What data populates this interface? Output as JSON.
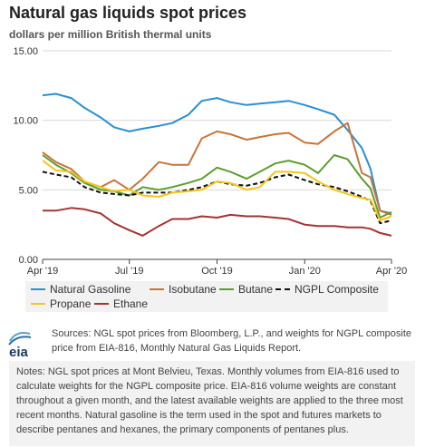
{
  "title": "Natural gas liquids spot prices",
  "subtitle": "dollars per million British thermal units",
  "chart_data": {
    "type": "line",
    "title": "Natural gas liquids spot prices",
    "ylabel": "dollars per million British thermal units",
    "xlabel": "",
    "ylim": [
      0,
      15
    ],
    "y_ticks": [
      "0.00",
      "5.00",
      "10.00",
      "15.00"
    ],
    "x_ticks": [
      "Apr '19",
      "Jul '19",
      "Oct '19",
      "Jan '20",
      "Apr '20"
    ],
    "x_tick_dates": [
      "2019-04-01",
      "2019-07-01",
      "2019-10-01",
      "2020-01-01",
      "2020-04-01"
    ],
    "grid": true,
    "legend_position": "bottom",
    "x": [
      "2019-04-01",
      "2019-04-15",
      "2019-05-01",
      "2019-05-15",
      "2019-06-01",
      "2019-06-15",
      "2019-07-01",
      "2019-07-15",
      "2019-08-01",
      "2019-08-15",
      "2019-09-01",
      "2019-09-15",
      "2019-10-01",
      "2019-10-15",
      "2019-11-01",
      "2019-11-15",
      "2019-12-01",
      "2019-12-15",
      "2020-01-01",
      "2020-01-15",
      "2020-02-01",
      "2020-02-15",
      "2020-03-01",
      "2020-03-10",
      "2020-03-20",
      "2020-04-01"
    ],
    "series": [
      {
        "name": "Natural Gasoline",
        "color": "#2a8fd0",
        "dashed": false,
        "values": [
          11.8,
          11.9,
          11.6,
          10.9,
          10.2,
          9.5,
          9.2,
          9.4,
          9.6,
          9.8,
          10.4,
          11.4,
          11.6,
          11.3,
          11.1,
          11.2,
          11.3,
          11.4,
          11.1,
          10.8,
          10.4,
          9.3,
          8.0,
          6.5,
          3.5,
          3.3
        ]
      },
      {
        "name": "Isobutane",
        "color": "#c8743a",
        "dashed": false,
        "values": [
          7.7,
          7.0,
          6.5,
          5.6,
          5.2,
          5.7,
          5.0,
          5.8,
          7.0,
          6.8,
          6.8,
          8.7,
          9.2,
          9.0,
          8.6,
          8.8,
          9.0,
          9.1,
          8.4,
          8.3,
          9.2,
          9.8,
          6.2,
          5.9,
          3.5,
          3.2
        ]
      },
      {
        "name": "Butane",
        "color": "#5c9e2e",
        "dashed": false,
        "values": [
          7.5,
          6.8,
          6.2,
          5.5,
          5.0,
          4.9,
          4.6,
          5.2,
          5.0,
          5.2,
          5.5,
          5.8,
          6.6,
          6.3,
          5.8,
          6.3,
          6.9,
          7.1,
          6.8,
          6.2,
          7.5,
          7.2,
          5.8,
          5.1,
          3.0,
          3.4
        ]
      },
      {
        "name": "NGPL Composite",
        "color": "#111111",
        "dashed": true,
        "values": [
          6.3,
          6.1,
          5.9,
          5.2,
          4.8,
          4.7,
          4.6,
          4.8,
          4.8,
          4.8,
          5.0,
          5.2,
          5.6,
          5.4,
          5.3,
          5.5,
          5.9,
          6.1,
          5.7,
          5.4,
          5.2,
          4.9,
          4.5,
          4.2,
          2.6,
          2.8
        ]
      },
      {
        "name": "Propane",
        "color": "#f5c518",
        "dashed": false,
        "values": [
          7.1,
          6.4,
          6.3,
          5.6,
          5.2,
          4.9,
          5.0,
          4.6,
          4.5,
          4.8,
          4.9,
          5.0,
          5.6,
          5.5,
          5.0,
          5.2,
          6.3,
          6.3,
          6.2,
          5.6,
          5.0,
          4.7,
          4.4,
          4.3,
          2.8,
          3.1
        ]
      },
      {
        "name": "Ethane",
        "color": "#a83232",
        "dashed": false,
        "values": [
          3.5,
          3.5,
          3.7,
          3.6,
          3.3,
          2.6,
          2.1,
          1.7,
          2.4,
          2.9,
          2.9,
          3.1,
          3.0,
          3.2,
          3.1,
          3.1,
          3.0,
          2.9,
          2.5,
          2.4,
          2.4,
          2.3,
          2.3,
          2.2,
          1.9,
          1.7
        ]
      }
    ]
  },
  "legend": {
    "items": [
      "Natural Gasoline",
      "Isobutane",
      "Butane",
      "NGPL Composite",
      "Propane",
      "Ethane"
    ]
  },
  "footer": {
    "logo_text": "eia",
    "sources": "Sources: NGL spot prices from Bloomberg, L.P., and weights for NGPL composite price from EIA-816, Monthly Natural Gas Liquids Report.",
    "notes": "Notes: NGL spot prices at Mont Belvieu, Texas. Monthly volumes from EIA-816 used to calculate weights for the NGPL composite price. EIA-816 volume weights are constant throughout a given month, and the latest available weights are applied to the three most recent months. Natural gasoline is the term used in the spot and futures markets to describe pentanes and hexanes, the primary components of pentanes plus."
  }
}
